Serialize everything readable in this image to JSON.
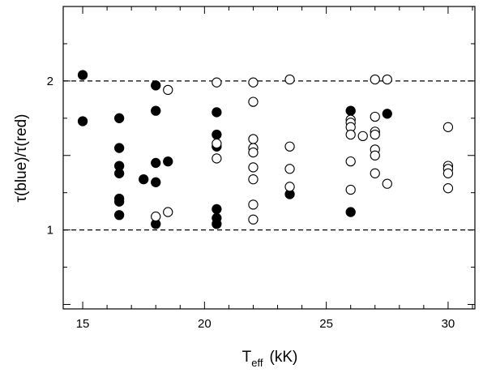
{
  "chart_data": {
    "type": "scatter",
    "title": "",
    "xlabel": "T",
    "xlabel_subscript": "eff",
    "xlabel_unit": "(kK)",
    "ylabel": "τ(blue)/τ(red)",
    "xlim": [
      14.2,
      31.1
    ],
    "ylim": [
      0.47,
      2.5
    ],
    "x_ticks": [
      15,
      20,
      25,
      30
    ],
    "x_tick_labels": [
      "15",
      "20",
      "25",
      "30"
    ],
    "y_ticks": [
      1,
      2
    ],
    "y_tick_labels": [
      "1",
      "2"
    ],
    "reference_lines": [
      1,
      2
    ],
    "grid": false,
    "series": [
      {
        "marker": "filled-circle",
        "color": "#000000",
        "points": [
          [
            15.0,
            2.04
          ],
          [
            15.0,
            1.73
          ],
          [
            16.5,
            1.75
          ],
          [
            16.5,
            1.55
          ],
          [
            16.5,
            1.43
          ],
          [
            16.5,
            1.38
          ],
          [
            16.5,
            1.21
          ],
          [
            16.5,
            1.19
          ],
          [
            16.5,
            1.1
          ],
          [
            17.5,
            1.34
          ],
          [
            18.0,
            1.97
          ],
          [
            18.0,
            1.8
          ],
          [
            18.0,
            1.45
          ],
          [
            18.0,
            1.32
          ],
          [
            18.0,
            1.04
          ],
          [
            18.5,
            1.46
          ],
          [
            20.5,
            1.79
          ],
          [
            20.5,
            1.64
          ],
          [
            20.5,
            1.56
          ],
          [
            20.5,
            1.14
          ],
          [
            20.5,
            1.08
          ],
          [
            20.5,
            1.04
          ],
          [
            23.5,
            1.24
          ],
          [
            26.0,
            1.8
          ],
          [
            26.0,
            1.12
          ],
          [
            27.5,
            1.78
          ]
        ]
      },
      {
        "marker": "open-circle",
        "color": "#000000",
        "points": [
          [
            18.0,
            1.09
          ],
          [
            18.5,
            1.94
          ],
          [
            18.5,
            1.12
          ],
          [
            20.5,
            1.99
          ],
          [
            20.5,
            1.58
          ],
          [
            20.5,
            1.48
          ],
          [
            22.0,
            1.99
          ],
          [
            22.0,
            1.86
          ],
          [
            22.0,
            1.61
          ],
          [
            22.0,
            1.55
          ],
          [
            22.0,
            1.52
          ],
          [
            22.0,
            1.42
          ],
          [
            22.0,
            1.34
          ],
          [
            22.0,
            1.17
          ],
          [
            22.0,
            1.07
          ],
          [
            23.5,
            2.01
          ],
          [
            23.5,
            1.56
          ],
          [
            23.5,
            1.41
          ],
          [
            23.5,
            1.29
          ],
          [
            26.0,
            1.74
          ],
          [
            26.0,
            1.72
          ],
          [
            26.0,
            1.69
          ],
          [
            26.0,
            1.64
          ],
          [
            26.0,
            1.46
          ],
          [
            26.0,
            1.27
          ],
          [
            26.5,
            1.63
          ],
          [
            27.0,
            2.01
          ],
          [
            27.0,
            1.76
          ],
          [
            27.0,
            1.66
          ],
          [
            27.0,
            1.64
          ],
          [
            27.0,
            1.54
          ],
          [
            27.0,
            1.5
          ],
          [
            27.0,
            1.38
          ],
          [
            27.5,
            2.01
          ],
          [
            27.5,
            1.31
          ],
          [
            30.0,
            1.69
          ],
          [
            30.0,
            1.43
          ],
          [
            30.0,
            1.41
          ],
          [
            30.0,
            1.38
          ],
          [
            30.0,
            1.28
          ]
        ]
      }
    ]
  }
}
